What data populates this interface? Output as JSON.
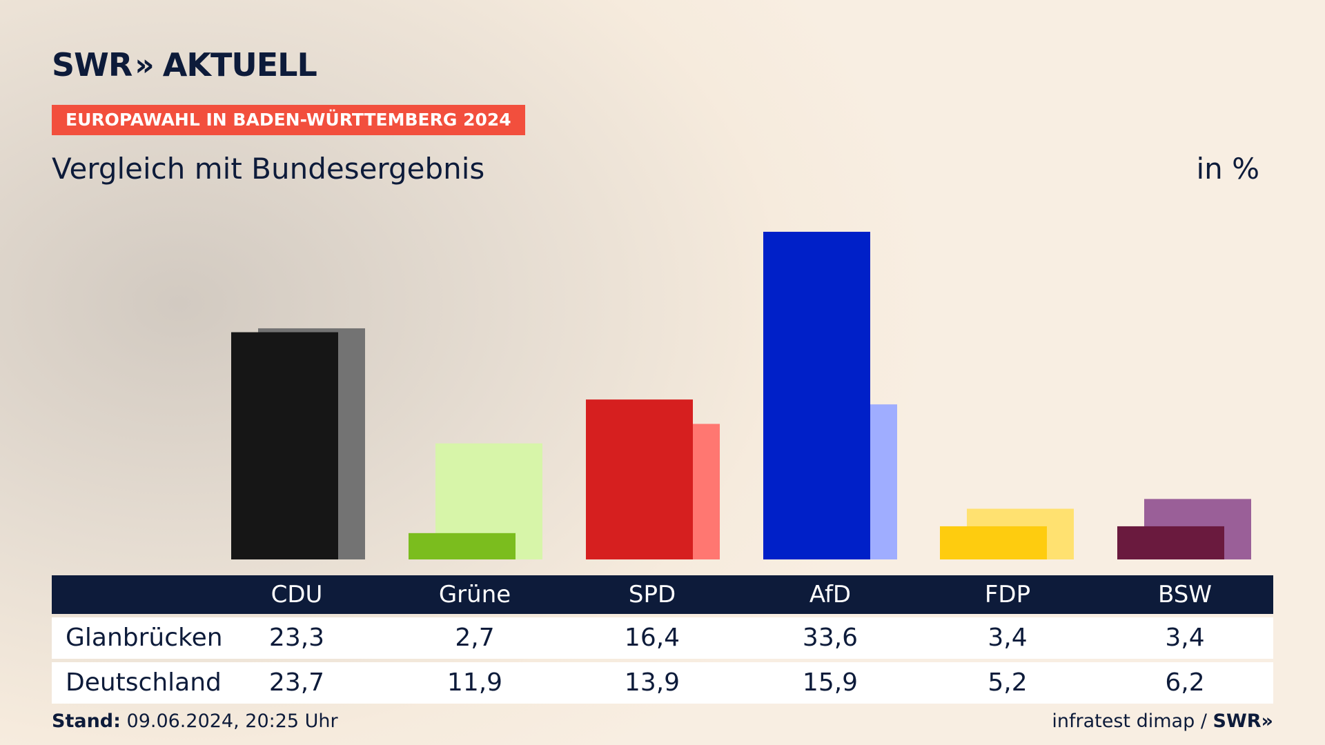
{
  "header": {
    "logo_text": "SWR",
    "logo_chevrons": "»",
    "logo_suffix": "AKTUELL",
    "tag": "EUROPAWAHL IN BADEN-WÜRTTEMBERG 2024",
    "subtitle": "Vergleich mit Bundesergebnis",
    "unit": "in %"
  },
  "chart_data": {
    "type": "bar",
    "categories": [
      "CDU",
      "Grüne",
      "SPD",
      "AfD",
      "FDP",
      "BSW"
    ],
    "series": [
      {
        "name": "Glanbrücken",
        "values": [
          23.3,
          2.7,
          16.4,
          33.6,
          3.4,
          3.4
        ]
      },
      {
        "name": "Deutschland",
        "values": [
          23.7,
          11.9,
          13.9,
          15.9,
          5.2,
          6.2
        ]
      }
    ],
    "colors": {
      "Glanbrücken": [
        "#161616",
        "#7bbd1e",
        "#d61f1f",
        "#0020c8",
        "#fecc0f",
        "#6a1a3e"
      ],
      "Deutschland": [
        "#737373",
        "#d7f5a9",
        "#ff7771",
        "#9fadff",
        "#ffe170",
        "#9a5f98"
      ]
    },
    "ylim": [
      0,
      35
    ]
  },
  "table": {
    "row_labels": [
      "Glanbrücken",
      "Deutschland"
    ],
    "values_display": [
      [
        "23,3",
        "2,7",
        "16,4",
        "33,6",
        "3,4",
        "3,4"
      ],
      [
        "23,7",
        "11,9",
        "13,9",
        "15,9",
        "5,2",
        "6,2"
      ]
    ]
  },
  "footer": {
    "stand_label": "Stand:",
    "stand_value": "09.06.2024, 20:25 Uhr",
    "source": "infratest dimap",
    "separator": "/",
    "source_logo": "SWR»"
  }
}
